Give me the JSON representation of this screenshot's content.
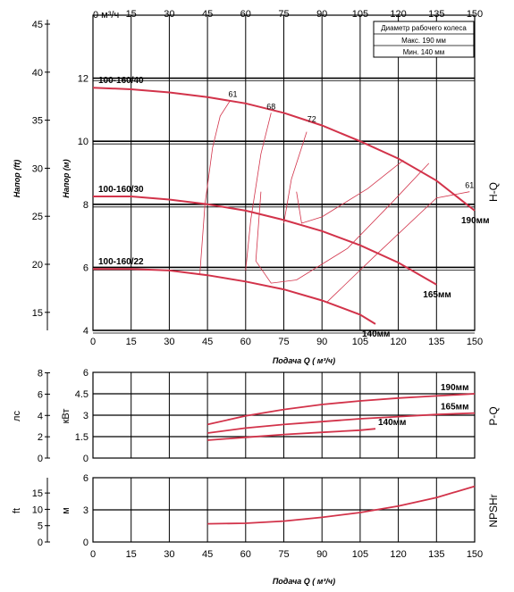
{
  "top_axis": {
    "unit": "0 м³/ч",
    "ticks": [
      15,
      30,
      45,
      60,
      75,
      90,
      105,
      120,
      135,
      150
    ]
  },
  "legend": {
    "title": "Диаметр рабочего колеса",
    "max": "Макс. 190 мм",
    "min": "Мин.  140 мм"
  },
  "chart_data": [
    {
      "type": "line",
      "id": "H-Q",
      "title": "H-Q",
      "xlabel": "Подача Q ( м³/ч)",
      "ylabel_left": "Напор (ft)",
      "ylabel_right": "Напор (м)",
      "xlim": [
        0,
        150
      ],
      "ylim": [
        4,
        14
      ],
      "ylim_ft": [
        13.1,
        46
      ],
      "x_ticks": [
        0,
        15,
        30,
        45,
        60,
        75,
        90,
        105,
        120,
        135,
        150
      ],
      "y_ticks_m": [
        4,
        6,
        8,
        10,
        12
      ],
      "y_ticks_ft": [
        15,
        20,
        25,
        30,
        35,
        40,
        45
      ],
      "grid": true,
      "series": [
        {
          "name": "100-160/40",
          "end_label": "190мм",
          "x": [
            0,
            15,
            30,
            45,
            60,
            75,
            90,
            105,
            120,
            135,
            150
          ],
          "y": [
            11.7,
            11.65,
            11.55,
            11.4,
            11.2,
            10.9,
            10.5,
            10.0,
            9.45,
            8.75,
            7.8
          ]
        },
        {
          "name": "100-160/30",
          "end_label": "165мм",
          "x": [
            0,
            15,
            30,
            45,
            60,
            75,
            90,
            105,
            120,
            135
          ],
          "y": [
            8.25,
            8.25,
            8.15,
            8.0,
            7.8,
            7.5,
            7.15,
            6.7,
            6.15,
            5.45
          ]
        },
        {
          "name": "100-160/22",
          "end_label": "140мм",
          "x": [
            0,
            15,
            30,
            45,
            60,
            75,
            90,
            105,
            111
          ],
          "y": [
            5.95,
            5.95,
            5.9,
            5.75,
            5.55,
            5.3,
            4.95,
            4.5,
            4.2
          ]
        }
      ],
      "efficiency_labels": [
        {
          "label": "61",
          "x": 55,
          "y": 11.3
        },
        {
          "label": "68",
          "x": 70,
          "y": 10.9
        },
        {
          "label": "72",
          "x": 86,
          "y": 10.5
        },
        {
          "label": "61",
          "x": 148,
          "y": 8.4
        }
      ]
    },
    {
      "type": "line",
      "id": "P-Q",
      "title": "P-Q",
      "ylabel_left": "лс",
      "ylabel_right": "кВт",
      "xlim": [
        0,
        150
      ],
      "ylim": [
        0,
        6
      ],
      "y_ticks_kw": [
        0,
        1.5,
        3,
        4.5,
        6
      ],
      "y_ticks_hp": [
        0,
        2,
        4,
        6,
        8
      ],
      "grid": true,
      "series": [
        {
          "name": "190мм",
          "x": [
            45,
            60,
            75,
            90,
            105,
            120,
            135,
            150
          ],
          "y": [
            2.35,
            2.95,
            3.4,
            3.75,
            4.0,
            4.2,
            4.35,
            4.5
          ]
        },
        {
          "name": "165мм",
          "x": [
            45,
            60,
            75,
            90,
            105,
            120,
            135,
            150
          ],
          "y": [
            1.75,
            2.1,
            2.35,
            2.55,
            2.75,
            2.9,
            3.05,
            3.15
          ]
        },
        {
          "name": "140мм",
          "x": [
            45,
            60,
            75,
            90,
            105,
            111
          ],
          "y": [
            1.25,
            1.45,
            1.65,
            1.8,
            1.95,
            2.05
          ]
        }
      ]
    },
    {
      "type": "line",
      "id": "NPSHr",
      "title": "NPSHr",
      "xlabel": "Подача Q ( м³/ч)",
      "ylabel_left": "ft",
      "ylabel_right": "м",
      "xlim": [
        0,
        150
      ],
      "ylim": [
        0,
        6
      ],
      "x_ticks": [
        0,
        15,
        30,
        45,
        60,
        75,
        90,
        105,
        120,
        135,
        150
      ],
      "y_ticks_m": [
        0,
        3,
        6
      ],
      "y_ticks_ft": [
        0,
        5,
        10,
        15
      ],
      "grid": true,
      "series": [
        {
          "name": "",
          "x": [
            45,
            60,
            75,
            90,
            105,
            120,
            135,
            150
          ],
          "y": [
            1.7,
            1.75,
            1.95,
            2.3,
            2.75,
            3.35,
            4.15,
            5.2
          ]
        }
      ]
    }
  ],
  "colors": {
    "curve": "#d2334a",
    "grid": "#000000"
  }
}
